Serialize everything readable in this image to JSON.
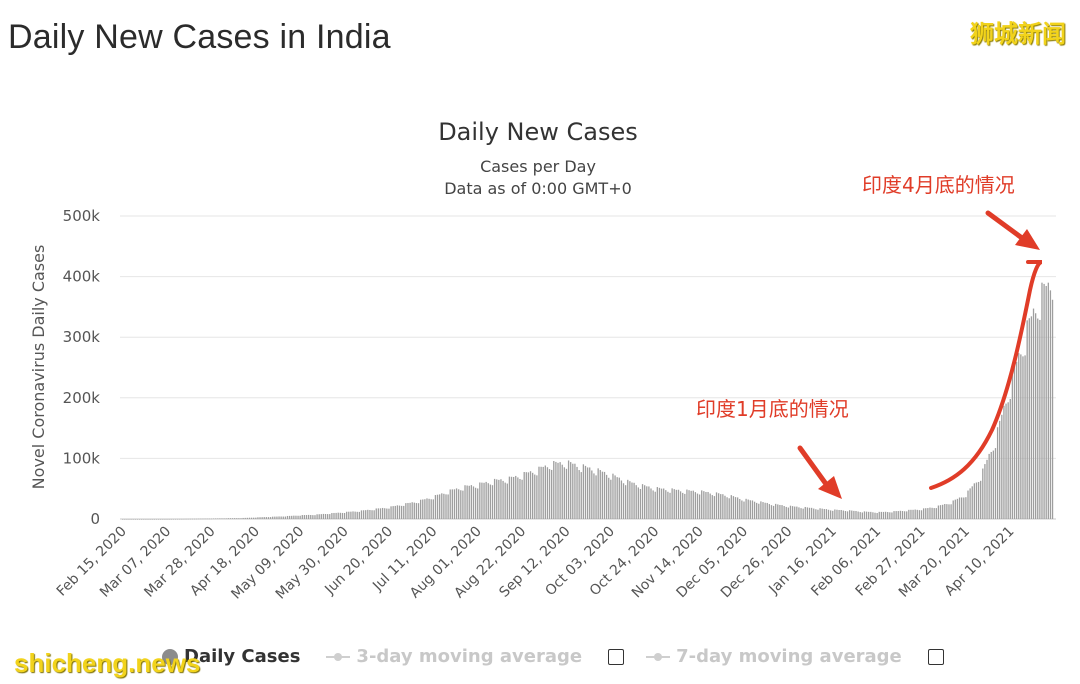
{
  "page_title": "Daily New Cases in India",
  "brand_top": "狮城新闻",
  "brand_bottom": "shicheng.news",
  "colors": {
    "bar": "#9e9e9e",
    "annotation": "#e03c28",
    "grid": "#e6e6e6",
    "text": "#333333"
  },
  "chart_data": {
    "type": "bar",
    "title": "Daily New Cases",
    "subtitle_line1": "Cases per Day",
    "subtitle_line2": "Data as of 0:00 GMT+0",
    "ylabel": "Novel Coronavirus Daily Cases",
    "xlabel": "",
    "ylim": [
      0,
      500000
    ],
    "y_ticks": [
      0,
      100000,
      200000,
      300000,
      400000,
      500000
    ],
    "y_tick_labels": [
      "0",
      "100k",
      "200k",
      "300k",
      "400k",
      "500k"
    ],
    "x_tick_labels": [
      "Feb 15, 2020",
      "Mar 07, 2020",
      "Mar 28, 2020",
      "Apr 18, 2020",
      "May 09, 2020",
      "May 30, 2020",
      "Jun 20, 2020",
      "Jul 11, 2020",
      "Aug 01, 2020",
      "Aug 22, 2020",
      "Sep 12, 2020",
      "Oct 03, 2020",
      "Oct 24, 2020",
      "Nov 14, 2020",
      "Dec 05, 2020",
      "Dec 26, 2020",
      "Jan 16, 2021",
      "Feb 06, 2021",
      "Feb 27, 2021",
      "Mar 20, 2021",
      "Apr 10, 2021"
    ],
    "x_tick_day_index": [
      0,
      21,
      42,
      63,
      84,
      105,
      126,
      147,
      168,
      189,
      210,
      231,
      252,
      273,
      294,
      315,
      336,
      357,
      378,
      399,
      420
    ],
    "series_name": "Daily Cases",
    "start_date": "Feb 15, 2020",
    "weekly_start_day_index": [
      0,
      7,
      14,
      21,
      28,
      35,
      42,
      49,
      56,
      63,
      70,
      77,
      84,
      91,
      98,
      105,
      112,
      119,
      126,
      133,
      140,
      147,
      154,
      161,
      168,
      175,
      182,
      189,
      196,
      203,
      210,
      217,
      224,
      231,
      238,
      245,
      252,
      259,
      266,
      273,
      280,
      287,
      294,
      301,
      308,
      315,
      322,
      329,
      336,
      343,
      350,
      357,
      364,
      371,
      378,
      385,
      392,
      399,
      406,
      413,
      420,
      427,
      434
    ],
    "weekly_avg_cases": [
      0,
      0,
      5,
      20,
      150,
      500,
      800,
      1200,
      1500,
      2500,
      3500,
      4500,
      6000,
      7000,
      9000,
      11000,
      13000,
      16000,
      19000,
      24000,
      29000,
      36000,
      45000,
      52000,
      56000,
      62000,
      65000,
      72000,
      80000,
      90000,
      92000,
      86000,
      80000,
      72000,
      62000,
      55000,
      50000,
      48000,
      46000,
      45000,
      42000,
      38000,
      32000,
      28000,
      24000,
      21000,
      19000,
      17000,
      15000,
      14000,
      12000,
      11000,
      12000,
      14000,
      16000,
      20000,
      27000,
      40000,
      70000,
      130000,
      220000,
      300000,
      365000
    ],
    "annotations": [
      {
        "text": "印度1月底的情况"
      },
      {
        "text": "印度4月底的情况"
      }
    ]
  },
  "legend": {
    "daily_cases": "Daily Cases",
    "avg3": "3-day moving average",
    "avg7": "7-day moving average"
  }
}
